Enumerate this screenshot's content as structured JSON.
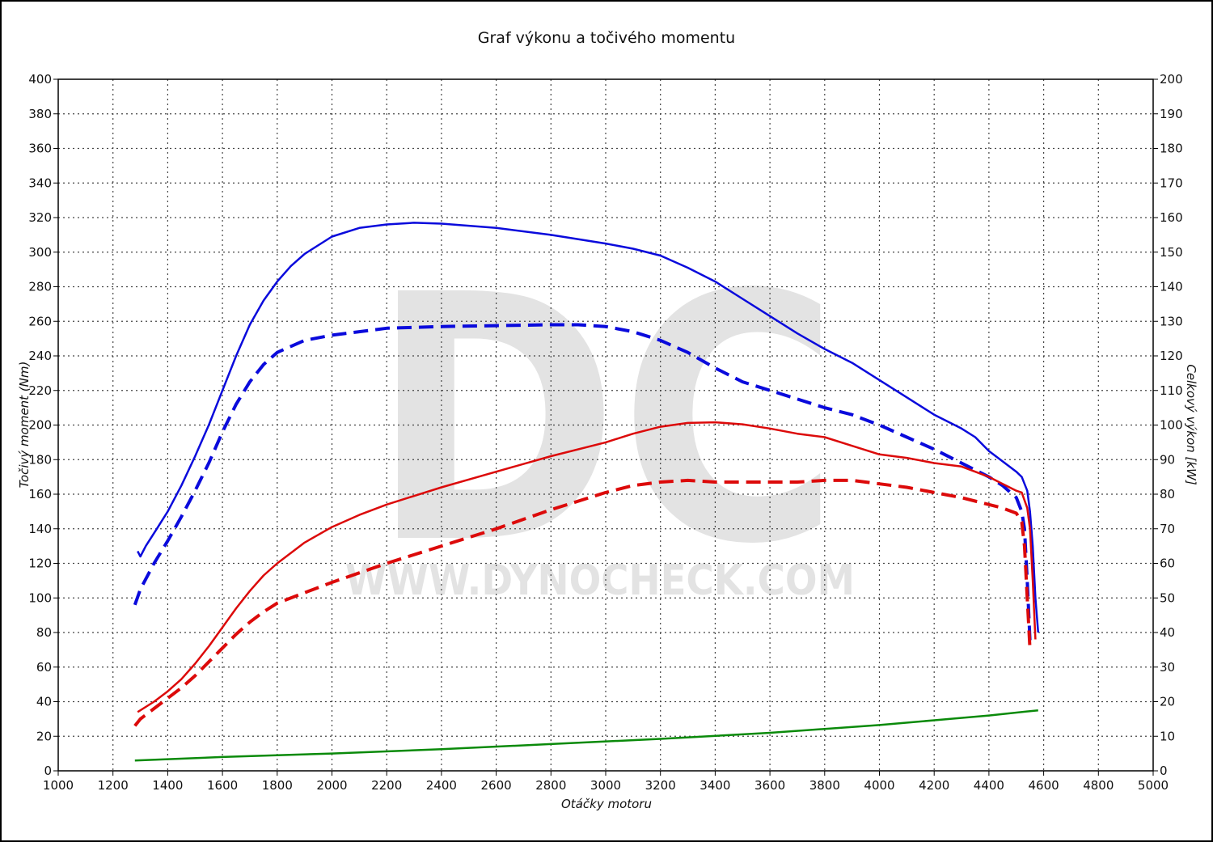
{
  "chart_data": {
    "type": "line",
    "title": "Graf výkonu a točivého momentu",
    "xlabel": "Otáčky motoru",
    "ylabel_left": "Točivý moment (Nm)",
    "ylabel_right": "Celkový výkon [kW]",
    "watermark": "DC",
    "watermark_url": "WWW.DYNOCHECK.COM",
    "xlim": [
      1000,
      5000
    ],
    "ylim_left": [
      0,
      400
    ],
    "ylim_right": [
      0,
      200
    ],
    "x_ticks": [
      "1000",
      "1200",
      "1400",
      "1600",
      "1800",
      "2000",
      "2200",
      "2400",
      "2600",
      "2800",
      "3000",
      "3200",
      "3400",
      "3600",
      "3800",
      "4000",
      "4200",
      "4400",
      "4600",
      "4800",
      "5000"
    ],
    "y_left_ticks": [
      "0",
      "20",
      "40",
      "60",
      "80",
      "100",
      "120",
      "140",
      "160",
      "180",
      "200",
      "220",
      "240",
      "260",
      "280",
      "300",
      "320",
      "340",
      "360",
      "380",
      "400"
    ],
    "y_right_ticks": [
      "0",
      "10",
      "20",
      "30",
      "40",
      "50",
      "60",
      "70",
      "80",
      "90",
      "100",
      "110",
      "120",
      "130",
      "140",
      "150",
      "160",
      "170",
      "180",
      "190",
      "200"
    ],
    "grid": true,
    "series": [
      {
        "axis": "left",
        "color": "#0a0adc",
        "dashed": false,
        "points": [
          [
            1290,
            127
          ],
          [
            1300,
            124
          ],
          [
            1320,
            130
          ],
          [
            1360,
            140
          ],
          [
            1400,
            150
          ],
          [
            1450,
            165
          ],
          [
            1500,
            182
          ],
          [
            1550,
            200
          ],
          [
            1600,
            220
          ],
          [
            1650,
            240
          ],
          [
            1700,
            258
          ],
          [
            1750,
            272
          ],
          [
            1800,
            283
          ],
          [
            1850,
            292
          ],
          [
            1900,
            299
          ],
          [
            2000,
            309
          ],
          [
            2100,
            314
          ],
          [
            2200,
            316
          ],
          [
            2300,
            317
          ],
          [
            2400,
            316.5
          ],
          [
            2600,
            314
          ],
          [
            2800,
            310
          ],
          [
            3000,
            305
          ],
          [
            3100,
            302
          ],
          [
            3200,
            298
          ],
          [
            3300,
            291
          ],
          [
            3400,
            283
          ],
          [
            3500,
            273
          ],
          [
            3600,
            263
          ],
          [
            3700,
            253
          ],
          [
            3800,
            244
          ],
          [
            3900,
            236
          ],
          [
            4000,
            226
          ],
          [
            4100,
            216
          ],
          [
            4200,
            206
          ],
          [
            4300,
            198
          ],
          [
            4350,
            193
          ],
          [
            4400,
            185
          ],
          [
            4450,
            179
          ],
          [
            4500,
            173
          ],
          [
            4520,
            170
          ],
          [
            4540,
            162
          ],
          [
            4550,
            150
          ],
          [
            4560,
            130
          ],
          [
            4570,
            100
          ],
          [
            4580,
            80
          ]
        ]
      },
      {
        "axis": "left",
        "color": "#0a0adc",
        "dashed": true,
        "points": [
          [
            1280,
            96
          ],
          [
            1300,
            105
          ],
          [
            1350,
            120
          ],
          [
            1400,
            133
          ],
          [
            1450,
            147
          ],
          [
            1500,
            162
          ],
          [
            1550,
            178
          ],
          [
            1600,
            196
          ],
          [
            1650,
            212
          ],
          [
            1700,
            225
          ],
          [
            1750,
            235
          ],
          [
            1800,
            242
          ],
          [
            1900,
            249
          ],
          [
            2000,
            252
          ],
          [
            2200,
            256
          ],
          [
            2400,
            257
          ],
          [
            2600,
            257.5
          ],
          [
            2800,
            258
          ],
          [
            2900,
            258
          ],
          [
            3000,
            257
          ],
          [
            3100,
            254
          ],
          [
            3200,
            249
          ],
          [
            3300,
            242
          ],
          [
            3400,
            233
          ],
          [
            3500,
            225
          ],
          [
            3600,
            220
          ],
          [
            3700,
            215
          ],
          [
            3800,
            210
          ],
          [
            3900,
            206
          ],
          [
            4000,
            200
          ],
          [
            4100,
            193
          ],
          [
            4200,
            186
          ],
          [
            4300,
            178
          ],
          [
            4400,
            170
          ],
          [
            4450,
            165
          ],
          [
            4500,
            158
          ],
          [
            4520,
            150
          ],
          [
            4530,
            140
          ],
          [
            4540,
            110
          ],
          [
            4550,
            75
          ]
        ]
      },
      {
        "axis": "right",
        "color": "#dc0a0a",
        "dashed": false,
        "points": [
          [
            1290,
            17
          ],
          [
            1350,
            20
          ],
          [
            1400,
            23
          ],
          [
            1450,
            26.5
          ],
          [
            1500,
            31
          ],
          [
            1550,
            36
          ],
          [
            1600,
            41.5
          ],
          [
            1650,
            47
          ],
          [
            1700,
            52
          ],
          [
            1750,
            56.5
          ],
          [
            1800,
            60
          ],
          [
            1900,
            66
          ],
          [
            2000,
            70.5
          ],
          [
            2100,
            74
          ],
          [
            2200,
            77
          ],
          [
            2400,
            82
          ],
          [
            2600,
            86.5
          ],
          [
            2800,
            91
          ],
          [
            3000,
            95
          ],
          [
            3100,
            97.5
          ],
          [
            3200,
            99.5
          ],
          [
            3300,
            100.6
          ],
          [
            3400,
            100.8
          ],
          [
            3500,
            100.2
          ],
          [
            3600,
            99
          ],
          [
            3700,
            97.5
          ],
          [
            3800,
            96.5
          ],
          [
            3900,
            94
          ],
          [
            4000,
            91.5
          ],
          [
            4100,
            90.5
          ],
          [
            4200,
            89
          ],
          [
            4300,
            88
          ],
          [
            4400,
            85
          ],
          [
            4450,
            83
          ],
          [
            4500,
            81
          ],
          [
            4520,
            80.5
          ],
          [
            4540,
            76
          ],
          [
            4550,
            70
          ],
          [
            4560,
            55
          ],
          [
            4570,
            38
          ]
        ]
      },
      {
        "axis": "right",
        "color": "#dc0a0a",
        "dashed": true,
        "points": [
          [
            1280,
            13
          ],
          [
            1300,
            15
          ],
          [
            1350,
            18
          ],
          [
            1400,
            21
          ],
          [
            1450,
            24
          ],
          [
            1500,
            27.5
          ],
          [
            1550,
            31.5
          ],
          [
            1600,
            35.5
          ],
          [
            1650,
            39.5
          ],
          [
            1700,
            43
          ],
          [
            1750,
            46
          ],
          [
            1800,
            48.5
          ],
          [
            1900,
            51.5
          ],
          [
            2000,
            54.5
          ],
          [
            2200,
            60
          ],
          [
            2400,
            65
          ],
          [
            2600,
            70
          ],
          [
            2800,
            75.5
          ],
          [
            3000,
            80.5
          ],
          [
            3100,
            82.5
          ],
          [
            3200,
            83.5
          ],
          [
            3300,
            84
          ],
          [
            3400,
            83.5
          ],
          [
            3500,
            83.5
          ],
          [
            3600,
            83.5
          ],
          [
            3700,
            83.5
          ],
          [
            3800,
            84
          ],
          [
            3900,
            84
          ],
          [
            4000,
            83
          ],
          [
            4100,
            82
          ],
          [
            4200,
            80.5
          ],
          [
            4300,
            79
          ],
          [
            4400,
            77
          ],
          [
            4450,
            76
          ],
          [
            4500,
            74.5
          ],
          [
            4520,
            72
          ],
          [
            4530,
            65
          ],
          [
            4540,
            50
          ],
          [
            4550,
            35
          ]
        ]
      },
      {
        "axis": "left",
        "color": "#0a8a0a",
        "dashed": false,
        "points": [
          [
            1280,
            6
          ],
          [
            1600,
            8
          ],
          [
            2000,
            10
          ],
          [
            2400,
            12.5
          ],
          [
            2800,
            15.5
          ],
          [
            3200,
            18.5
          ],
          [
            3600,
            22
          ],
          [
            4000,
            26.5
          ],
          [
            4400,
            32
          ],
          [
            4580,
            35
          ]
        ]
      }
    ]
  }
}
